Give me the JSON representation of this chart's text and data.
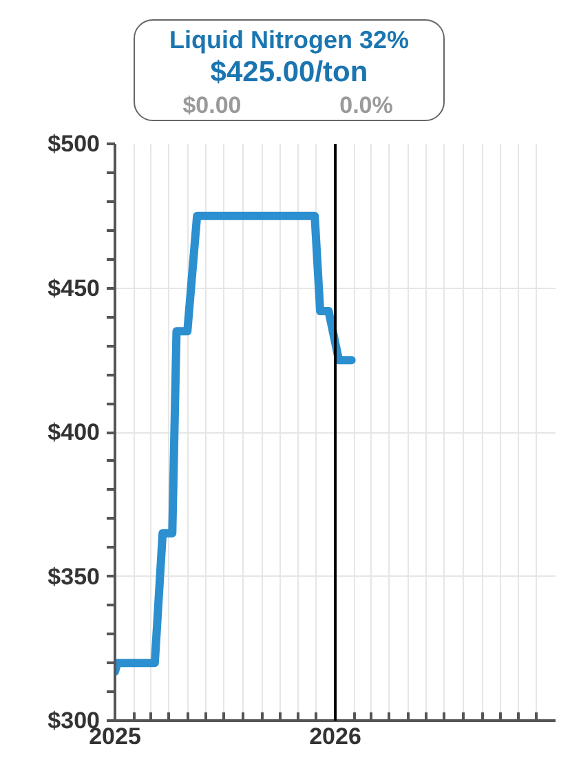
{
  "chart_data": {
    "type": "line",
    "title": "Liquid Nitrogen 32%",
    "annotations": [
      "$425.00/ton",
      "$0.00",
      "0.0%"
    ],
    "x": [
      "2025-01-01",
      "2025-01-05",
      "2025-03-08",
      "2025-03-21",
      "2025-04-06",
      "2025-04-13",
      "2025-05-01",
      "2025-05-17",
      "2025-11-28",
      "2025-12-07",
      "2025-12-21",
      "2026-01-07",
      "2026-01-28"
    ],
    "series": [
      {
        "color": "#2b8fd0",
        "values": [
          317,
          320,
          320,
          365,
          365,
          435,
          435,
          475,
          475,
          442,
          442,
          425,
          425
        ]
      }
    ],
    "xlim": [
      "2025-01-01",
      "2027-01-01"
    ],
    "xticks": [
      {
        "value": "2025-01-01",
        "label": "2025"
      },
      {
        "value": "2025-02-01",
        "label": null
      },
      {
        "value": "2025-03-01",
        "label": null
      },
      {
        "value": "2025-04-01",
        "label": null
      },
      {
        "value": "2025-05-01",
        "label": null
      },
      {
        "value": "2025-06-01",
        "label": null
      },
      {
        "value": "2025-07-01",
        "label": null
      },
      {
        "value": "2025-08-01",
        "label": null
      },
      {
        "value": "2025-09-01",
        "label": null
      },
      {
        "value": "2025-10-01",
        "label": null
      },
      {
        "value": "2025-11-01",
        "label": null
      },
      {
        "value": "2025-12-01",
        "label": null
      },
      {
        "value": "2026-01-01",
        "label": "2026"
      },
      {
        "value": "2026-02-01",
        "label": null
      },
      {
        "value": "2026-03-01",
        "label": null
      },
      {
        "value": "2026-04-01",
        "label": null
      },
      {
        "value": "2026-05-01",
        "label": null
      },
      {
        "value": "2026-06-01",
        "label": null
      },
      {
        "value": "2026-07-01",
        "label": null
      },
      {
        "value": "2026-08-01",
        "label": null
      },
      {
        "value": "2026-09-01",
        "label": null
      },
      {
        "value": "2026-10-01",
        "label": null
      },
      {
        "value": "2026-11-01",
        "label": null
      },
      {
        "value": "2026-12-01",
        "label": null
      }
    ],
    "ylim": [
      300,
      500
    ],
    "yticks": [
      {
        "value": 300,
        "label": "$300"
      },
      {
        "value": 310,
        "label": null
      },
      {
        "value": 320,
        "label": null
      },
      {
        "value": 330,
        "label": null
      },
      {
        "value": 340,
        "label": null
      },
      {
        "value": 350,
        "label": "$350"
      },
      {
        "value": 360,
        "label": null
      },
      {
        "value": 370,
        "label": null
      },
      {
        "value": 380,
        "label": null
      },
      {
        "value": 390,
        "label": null
      },
      {
        "value": 400,
        "label": "$400"
      },
      {
        "value": 410,
        "label": null
      },
      {
        "value": 420,
        "label": null
      },
      {
        "value": 430,
        "label": null
      },
      {
        "value": 440,
        "label": null
      },
      {
        "value": 450,
        "label": "$450"
      },
      {
        "value": 460,
        "label": null
      },
      {
        "value": 470,
        "label": null
      },
      {
        "value": 480,
        "label": null
      },
      {
        "value": 490,
        "label": null
      },
      {
        "value": 500,
        "label": "$500"
      }
    ],
    "ref_lines": [
      {
        "axis": "x",
        "value": "2026-01-01",
        "color": "#000000"
      }
    ],
    "grid": true,
    "marker": "none",
    "line_style": "solid"
  }
}
